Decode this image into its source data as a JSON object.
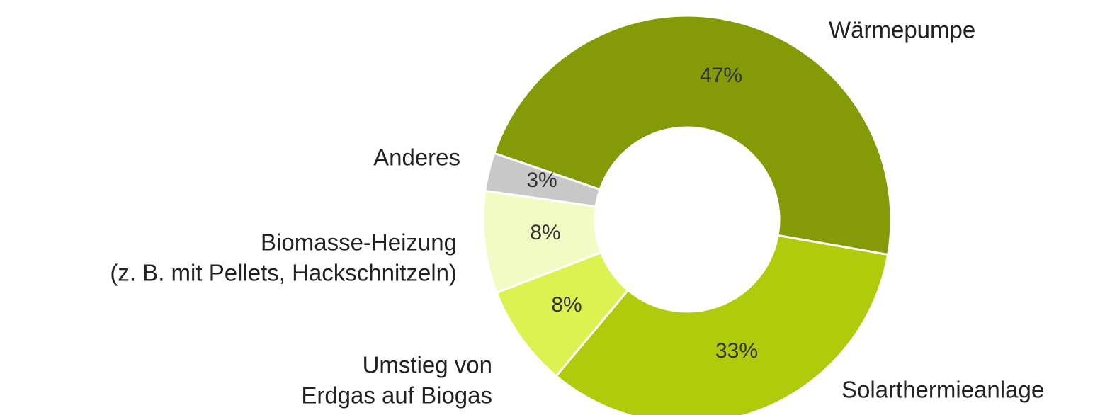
{
  "chart_data": {
    "type": "donut",
    "categories": [
      [
        "Wärmepumpe"
      ],
      [
        "Solarthermieanlage"
      ],
      [
        "Umstieg von",
        "Erdgas auf Biogas"
      ],
      [
        "Biomasse-Heizung",
        "(z. B. mit Pellets, Hackschnitzeln)"
      ],
      [
        "Anderes"
      ]
    ],
    "values": [
      47,
      33,
      8,
      8,
      3
    ],
    "value_labels": [
      "47%",
      "33%",
      "8%",
      "8%",
      "3%"
    ],
    "colors": [
      "#859a07",
      "#b0cb0b",
      "#dcf250",
      "#f2fbc4",
      "#c8c8c8"
    ]
  }
}
